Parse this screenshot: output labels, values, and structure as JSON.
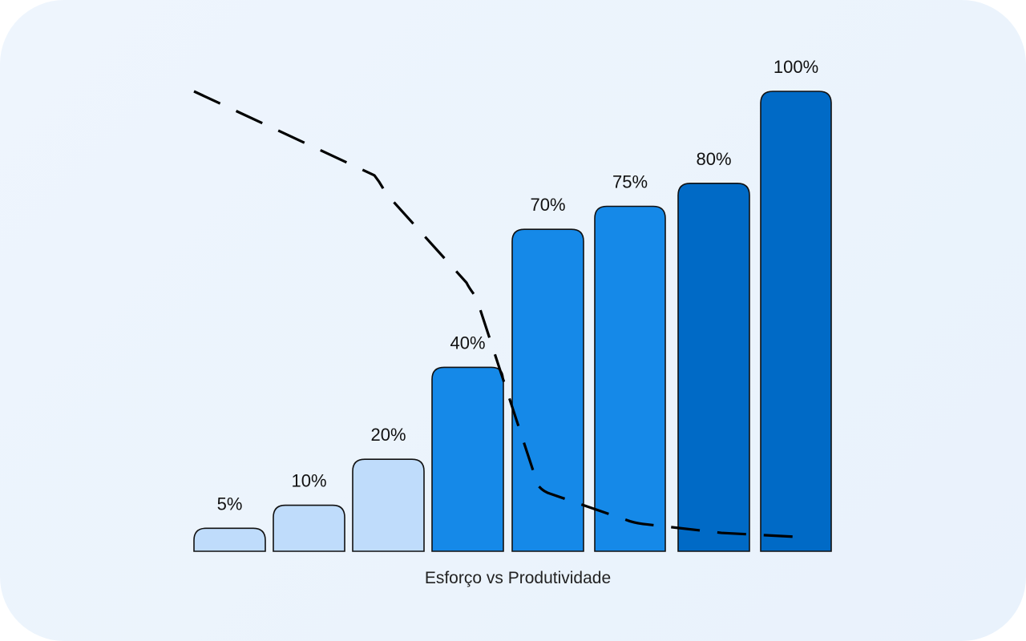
{
  "chart_data": {
    "type": "bar",
    "title": "Esforço vs Produtividade",
    "values": [
      5,
      10,
      20,
      40,
      70,
      75,
      80,
      100
    ],
    "labels": [
      "5%",
      "10%",
      "20%",
      "40%",
      "70%",
      "75%",
      "80%",
      "100%"
    ],
    "colors": [
      "#bfdcfb",
      "#bfdcfb",
      "#bfdcfb",
      "#1589e8",
      "#1589e8",
      "#1589e8",
      "#006ac6",
      "#006ac6"
    ],
    "bar_outline_color": "#111111",
    "ylim": [
      0,
      100
    ],
    "overlay_line": {
      "style": "dashed",
      "color": "#000000",
      "values": [
        100,
        80,
        57,
        30,
        13,
        6,
        4,
        3
      ]
    },
    "grid": false,
    "legend": "none"
  }
}
